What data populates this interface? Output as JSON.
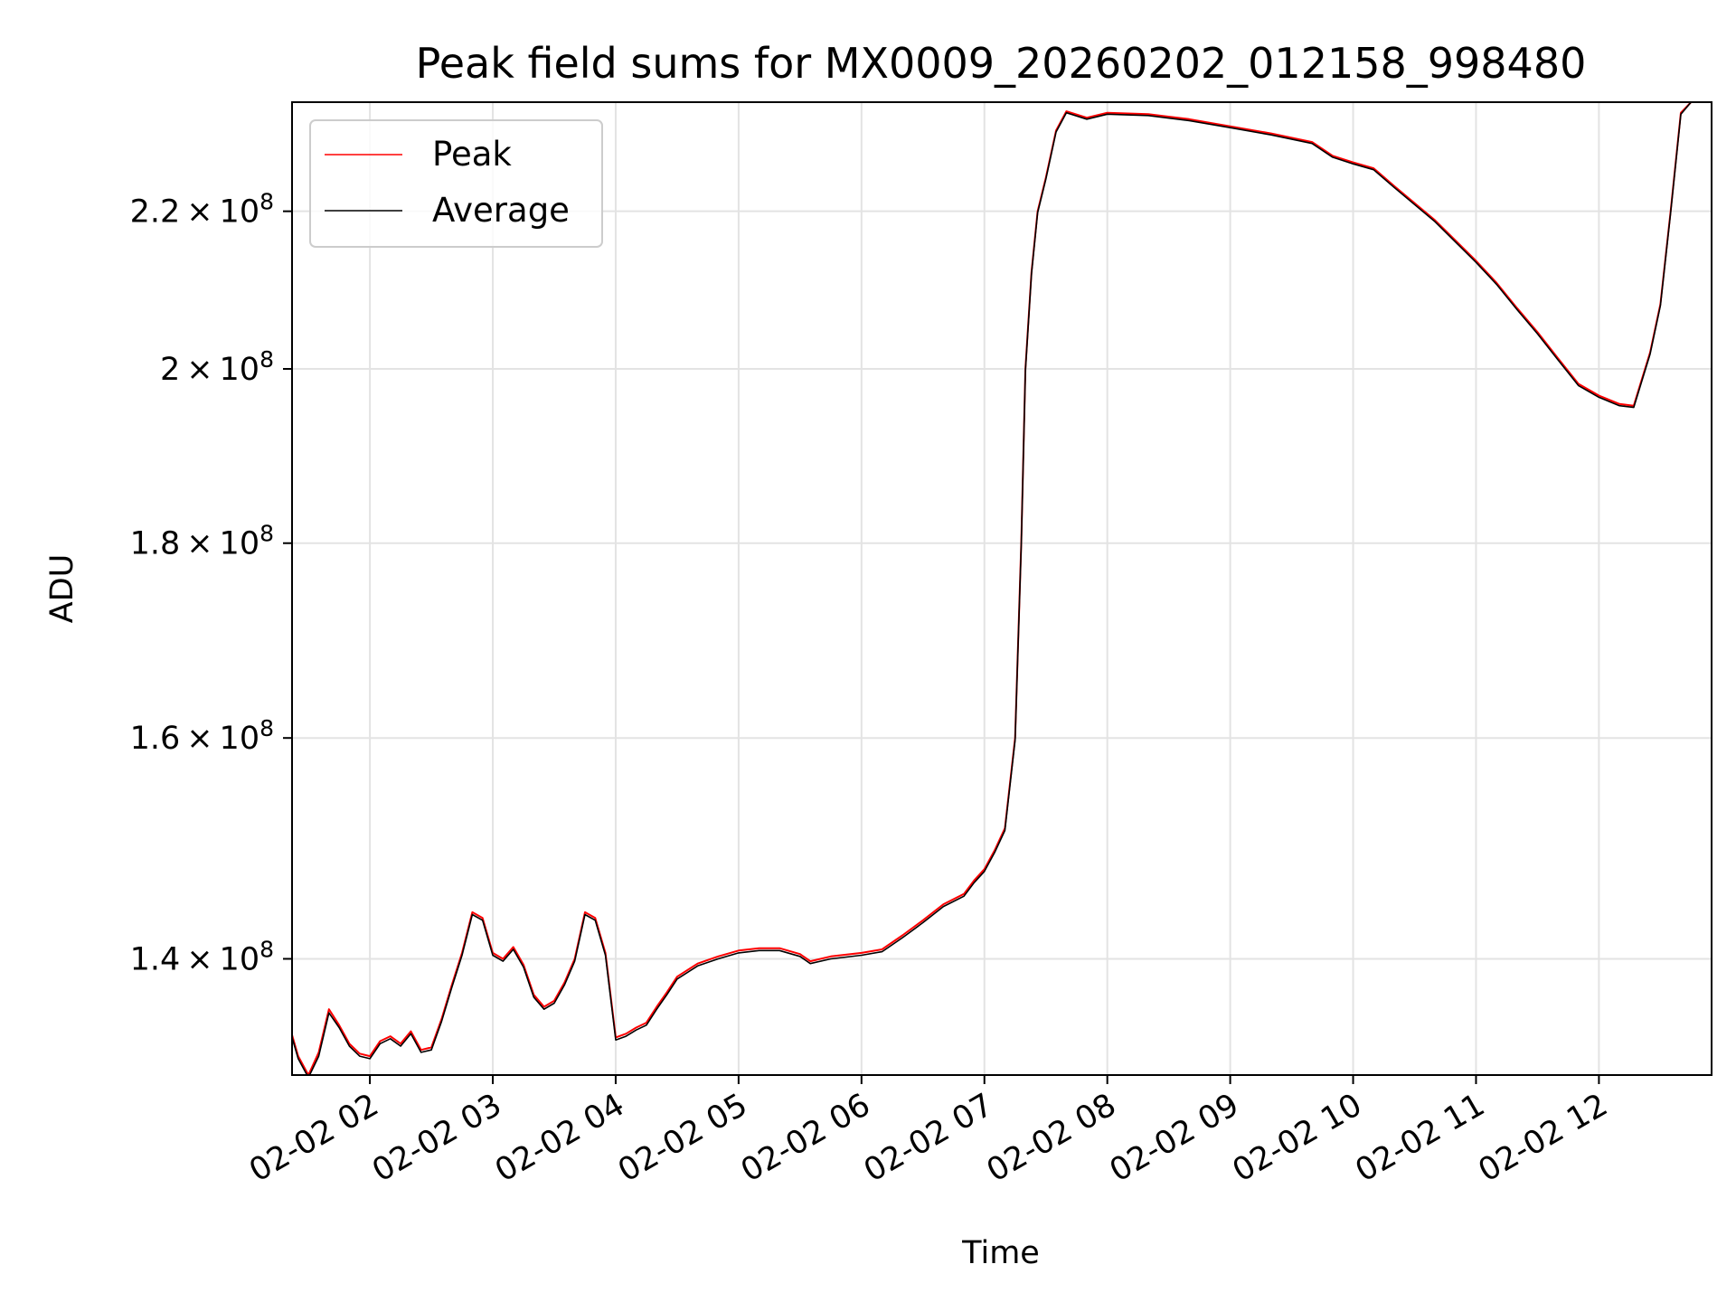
{
  "chart_data": {
    "type": "line",
    "title": "Peak field sums for MX0009_20260202_012158_998480",
    "xlabel": "Time",
    "ylabel": "ADU",
    "y_scale": "log",
    "xlim": [
      "2026-02-02 01:22",
      "2026-02-02 12:55"
    ],
    "ylim": [
      130500000,
      235000000
    ],
    "grid": true,
    "legend_position": "top-left",
    "x_ticks": [
      {
        "time": "2026-02-02 02:00",
        "label": "02-02 02"
      },
      {
        "time": "2026-02-02 03:00",
        "label": "02-02 03"
      },
      {
        "time": "2026-02-02 04:00",
        "label": "02-02 04"
      },
      {
        "time": "2026-02-02 05:00",
        "label": "02-02 05"
      },
      {
        "time": "2026-02-02 06:00",
        "label": "02-02 06"
      },
      {
        "time": "2026-02-02 07:00",
        "label": "02-02 07"
      },
      {
        "time": "2026-02-02 08:00",
        "label": "02-02 08"
      },
      {
        "time": "2026-02-02 09:00",
        "label": "02-02 09"
      },
      {
        "time": "2026-02-02 10:00",
        "label": "02-02 10"
      },
      {
        "time": "2026-02-02 11:00",
        "label": "02-02 11"
      },
      {
        "time": "2026-02-02 12:00",
        "label": "02-02 12"
      }
    ],
    "y_ticks": [
      {
        "value": 140000000,
        "mantissa": "1.4",
        "base": "10",
        "exp": "8"
      },
      {
        "value": 160000000,
        "mantissa": "1.6",
        "base": "10",
        "exp": "8"
      },
      {
        "value": 180000000,
        "mantissa": "1.8",
        "base": "10",
        "exp": "8"
      },
      {
        "value": 200000000,
        "mantissa": "2",
        "base": "10",
        "exp": "8"
      },
      {
        "value": 220000000,
        "mantissa": "2.2",
        "base": "10",
        "exp": "8"
      }
    ],
    "series": [
      {
        "name": "Peak",
        "color": "#ff0000",
        "points": [
          [
            "2026-02-02 01:22",
            133700000
          ],
          [
            "2026-02-02 01:25",
            132000000
          ],
          [
            "2026-02-02 01:30",
            130500000
          ],
          [
            "2026-02-02 01:35",
            132300000
          ],
          [
            "2026-02-02 01:40",
            135800000
          ],
          [
            "2026-02-02 01:45",
            134500000
          ],
          [
            "2026-02-02 01:50",
            133000000
          ],
          [
            "2026-02-02 01:55",
            132200000
          ],
          [
            "2026-02-02 02:00",
            132000000
          ],
          [
            "2026-02-02 02:05",
            133200000
          ],
          [
            "2026-02-02 02:10",
            133600000
          ],
          [
            "2026-02-02 02:15",
            133000000
          ],
          [
            "2026-02-02 02:20",
            134000000
          ],
          [
            "2026-02-02 02:25",
            132500000
          ],
          [
            "2026-02-02 02:30",
            132700000
          ],
          [
            "2026-02-02 02:35",
            135000000
          ],
          [
            "2026-02-02 02:40",
            137800000
          ],
          [
            "2026-02-02 02:45",
            140500000
          ],
          [
            "2026-02-02 02:50",
            144000000
          ],
          [
            "2026-02-02 02:55",
            143500000
          ],
          [
            "2026-02-02 03:00",
            140500000
          ],
          [
            "2026-02-02 03:05",
            140000000
          ],
          [
            "2026-02-02 03:10",
            141000000
          ],
          [
            "2026-02-02 03:15",
            139500000
          ],
          [
            "2026-02-02 03:20",
            137000000
          ],
          [
            "2026-02-02 03:25",
            136000000
          ],
          [
            "2026-02-02 03:30",
            136500000
          ],
          [
            "2026-02-02 03:35",
            138000000
          ],
          [
            "2026-02-02 03:40",
            140000000
          ],
          [
            "2026-02-02 03:45",
            144000000
          ],
          [
            "2026-02-02 03:50",
            143500000
          ],
          [
            "2026-02-02 03:55",
            140500000
          ],
          [
            "2026-02-02 04:00",
            133500000
          ],
          [
            "2026-02-02 04:05",
            133800000
          ],
          [
            "2026-02-02 04:10",
            134300000
          ],
          [
            "2026-02-02 04:15",
            134700000
          ],
          [
            "2026-02-02 04:20",
            136000000
          ],
          [
            "2026-02-02 04:25",
            137200000
          ],
          [
            "2026-02-02 04:30",
            138500000
          ],
          [
            "2026-02-02 04:40",
            139600000
          ],
          [
            "2026-02-02 04:50",
            140200000
          ],
          [
            "2026-02-02 05:00",
            140700000
          ],
          [
            "2026-02-02 05:10",
            140900000
          ],
          [
            "2026-02-02 05:20",
            140900000
          ],
          [
            "2026-02-02 05:30",
            140400000
          ],
          [
            "2026-02-02 05:35",
            139800000
          ],
          [
            "2026-02-02 05:45",
            140200000
          ],
          [
            "2026-02-02 06:00",
            140500000
          ],
          [
            "2026-02-02 06:10",
            140800000
          ],
          [
            "2026-02-02 06:20",
            142000000
          ],
          [
            "2026-02-02 06:30",
            143300000
          ],
          [
            "2026-02-02 06:40",
            144700000
          ],
          [
            "2026-02-02 06:50",
            145600000
          ],
          [
            "2026-02-02 06:55",
            146800000
          ],
          [
            "2026-02-02 07:00",
            147800000
          ],
          [
            "2026-02-02 07:05",
            149500000
          ],
          [
            "2026-02-02 07:10",
            151500000
          ],
          [
            "2026-02-02 07:15",
            160000000
          ],
          [
            "2026-02-02 07:18",
            180000000
          ],
          [
            "2026-02-02 07:20",
            200000000
          ],
          [
            "2026-02-02 07:23",
            212000000
          ],
          [
            "2026-02-02 07:26",
            220000000
          ],
          [
            "2026-02-02 07:30",
            224500000
          ],
          [
            "2026-02-02 07:35",
            231000000
          ],
          [
            "2026-02-02 07:40",
            233700000
          ],
          [
            "2026-02-02 07:50",
            232800000
          ],
          [
            "2026-02-02 08:00",
            233500000
          ],
          [
            "2026-02-02 08:20",
            233300000
          ],
          [
            "2026-02-02 08:40",
            232600000
          ],
          [
            "2026-02-02 09:00",
            231600000
          ],
          [
            "2026-02-02 09:20",
            230600000
          ],
          [
            "2026-02-02 09:40",
            229400000
          ],
          [
            "2026-02-02 09:50",
            227500000
          ],
          [
            "2026-02-02 10:00",
            226600000
          ],
          [
            "2026-02-02 10:10",
            225800000
          ],
          [
            "2026-02-02 10:20",
            223400000
          ],
          [
            "2026-02-02 10:40",
            218800000
          ],
          [
            "2026-02-02 11:00",
            213500000
          ],
          [
            "2026-02-02 11:10",
            210700000
          ],
          [
            "2026-02-02 11:20",
            207500000
          ],
          [
            "2026-02-02 11:30",
            204500000
          ],
          [
            "2026-02-02 11:40",
            201300000
          ],
          [
            "2026-02-02 11:50",
            198200000
          ],
          [
            "2026-02-02 12:00",
            196800000
          ],
          [
            "2026-02-02 12:10",
            195800000
          ],
          [
            "2026-02-02 12:17",
            195600000
          ],
          [
            "2026-02-02 12:25",
            202000000
          ],
          [
            "2026-02-02 12:30",
            208000000
          ],
          [
            "2026-02-02 12:35",
            220000000
          ],
          [
            "2026-02-02 12:40",
            233500000
          ],
          [
            "2026-02-02 12:45",
            235000000
          ],
          [
            "2026-02-02 12:55",
            235000000
          ]
        ]
      },
      {
        "name": "Average",
        "color": "#000000",
        "points": [
          [
            "2026-02-02 01:22",
            133500000
          ],
          [
            "2026-02-02 01:25",
            131800000
          ],
          [
            "2026-02-02 01:30",
            130300000
          ],
          [
            "2026-02-02 01:35",
            132000000
          ],
          [
            "2026-02-02 01:40",
            135500000
          ],
          [
            "2026-02-02 01:45",
            134300000
          ],
          [
            "2026-02-02 01:50",
            132800000
          ],
          [
            "2026-02-02 01:55",
            132000000
          ],
          [
            "2026-02-02 02:00",
            131800000
          ],
          [
            "2026-02-02 02:05",
            133000000
          ],
          [
            "2026-02-02 02:10",
            133400000
          ],
          [
            "2026-02-02 02:15",
            132800000
          ],
          [
            "2026-02-02 02:20",
            133800000
          ],
          [
            "2026-02-02 02:25",
            132300000
          ],
          [
            "2026-02-02 02:30",
            132500000
          ],
          [
            "2026-02-02 02:35",
            134800000
          ],
          [
            "2026-02-02 02:40",
            137600000
          ],
          [
            "2026-02-02 02:45",
            140300000
          ],
          [
            "2026-02-02 02:50",
            143800000
          ],
          [
            "2026-02-02 02:55",
            143300000
          ],
          [
            "2026-02-02 03:00",
            140300000
          ],
          [
            "2026-02-02 03:05",
            139800000
          ],
          [
            "2026-02-02 03:10",
            140800000
          ],
          [
            "2026-02-02 03:15",
            139300000
          ],
          [
            "2026-02-02 03:20",
            136800000
          ],
          [
            "2026-02-02 03:25",
            135800000
          ],
          [
            "2026-02-02 03:30",
            136300000
          ],
          [
            "2026-02-02 03:35",
            137800000
          ],
          [
            "2026-02-02 03:40",
            139800000
          ],
          [
            "2026-02-02 03:45",
            143800000
          ],
          [
            "2026-02-02 03:50",
            143300000
          ],
          [
            "2026-02-02 03:55",
            140300000
          ],
          [
            "2026-02-02 04:00",
            133300000
          ],
          [
            "2026-02-02 04:05",
            133600000
          ],
          [
            "2026-02-02 04:10",
            134100000
          ],
          [
            "2026-02-02 04:15",
            134500000
          ],
          [
            "2026-02-02 04:20",
            135800000
          ],
          [
            "2026-02-02 04:25",
            137000000
          ],
          [
            "2026-02-02 04:30",
            138300000
          ],
          [
            "2026-02-02 04:40",
            139400000
          ],
          [
            "2026-02-02 04:50",
            140000000
          ],
          [
            "2026-02-02 05:00",
            140500000
          ],
          [
            "2026-02-02 05:10",
            140700000
          ],
          [
            "2026-02-02 05:20",
            140700000
          ],
          [
            "2026-02-02 05:30",
            140200000
          ],
          [
            "2026-02-02 05:35",
            139600000
          ],
          [
            "2026-02-02 05:45",
            140000000
          ],
          [
            "2026-02-02 06:00",
            140300000
          ],
          [
            "2026-02-02 06:10",
            140600000
          ],
          [
            "2026-02-02 06:20",
            141800000
          ],
          [
            "2026-02-02 06:30",
            143100000
          ],
          [
            "2026-02-02 06:40",
            144500000
          ],
          [
            "2026-02-02 06:50",
            145400000
          ],
          [
            "2026-02-02 06:55",
            146600000
          ],
          [
            "2026-02-02 07:00",
            147600000
          ],
          [
            "2026-02-02 07:05",
            149300000
          ],
          [
            "2026-02-02 07:10",
            151300000
          ],
          [
            "2026-02-02 07:15",
            159800000
          ],
          [
            "2026-02-02 07:18",
            179800000
          ],
          [
            "2026-02-02 07:20",
            199800000
          ],
          [
            "2026-02-02 07:23",
            211800000
          ],
          [
            "2026-02-02 07:26",
            219800000
          ],
          [
            "2026-02-02 07:30",
            224300000
          ],
          [
            "2026-02-02 07:35",
            230800000
          ],
          [
            "2026-02-02 07:40",
            233500000
          ],
          [
            "2026-02-02 07:50",
            232600000
          ],
          [
            "2026-02-02 08:00",
            233300000
          ],
          [
            "2026-02-02 08:20",
            233100000
          ],
          [
            "2026-02-02 08:40",
            232400000
          ],
          [
            "2026-02-02 09:00",
            231400000
          ],
          [
            "2026-02-02 09:20",
            230400000
          ],
          [
            "2026-02-02 09:40",
            229200000
          ],
          [
            "2026-02-02 09:50",
            227300000
          ],
          [
            "2026-02-02 10:00",
            226400000
          ],
          [
            "2026-02-02 10:10",
            225600000
          ],
          [
            "2026-02-02 10:20",
            223200000
          ],
          [
            "2026-02-02 10:40",
            218600000
          ],
          [
            "2026-02-02 11:00",
            213300000
          ],
          [
            "2026-02-02 11:10",
            210500000
          ],
          [
            "2026-02-02 11:20",
            207300000
          ],
          [
            "2026-02-02 11:30",
            204300000
          ],
          [
            "2026-02-02 11:40",
            201100000
          ],
          [
            "2026-02-02 11:50",
            198000000
          ],
          [
            "2026-02-02 12:00",
            196600000
          ],
          [
            "2026-02-02 12:10",
            195600000
          ],
          [
            "2026-02-02 12:17",
            195400000
          ],
          [
            "2026-02-02 12:25",
            201800000
          ],
          [
            "2026-02-02 12:30",
            207800000
          ],
          [
            "2026-02-02 12:35",
            219800000
          ],
          [
            "2026-02-02 12:40",
            233300000
          ],
          [
            "2026-02-02 12:45",
            235000000
          ],
          [
            "2026-02-02 12:55",
            235000000
          ]
        ]
      }
    ]
  }
}
